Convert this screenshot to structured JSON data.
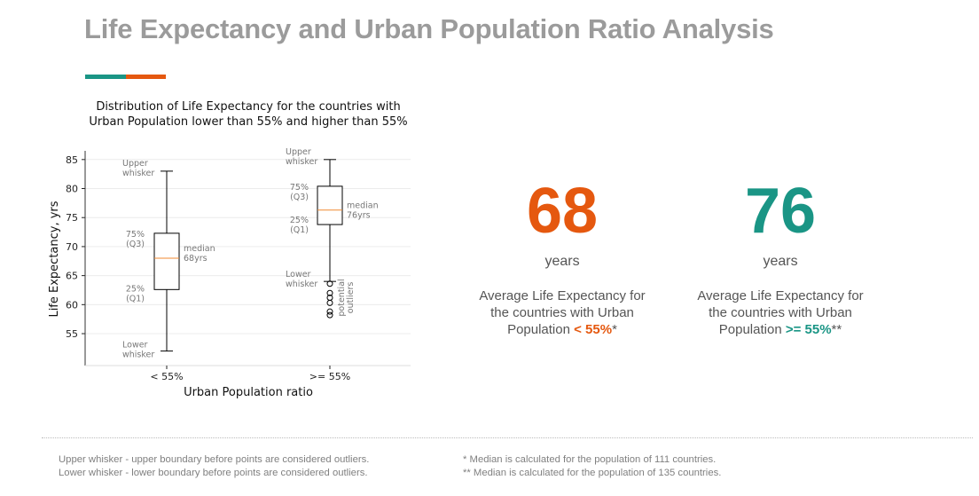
{
  "title": "Life Expectancy and Urban Population Ratio Analysis",
  "colors": {
    "orange": "#e5580f",
    "teal": "#1a9585",
    "median": "#f08a30"
  },
  "chart_data": {
    "type": "boxplot",
    "title_line1": "Distribution of Life Expectancy for the countries with",
    "title_line2": "Urban Population lower than 55% and higher than 55%",
    "xlabel": "Urban Population ratio",
    "ylabel": "Life Expectancy, yrs",
    "ylim": [
      49.5,
      86.5
    ],
    "yticks": [
      55,
      60,
      65,
      70,
      75,
      80,
      85
    ],
    "categories": [
      "< 55%",
      ">= 55%"
    ],
    "boxes": [
      {
        "category": "< 55%",
        "whisker_low": 52,
        "q1": 62.6,
        "median": 68,
        "q3": 72.3,
        "whisker_high": 83,
        "outliers": []
      },
      {
        "category": ">= 55%",
        "whisker_low": 64,
        "q1": 73.8,
        "median": 76.3,
        "q3": 80.4,
        "whisker_high": 85,
        "outliers": [
          63.6,
          62,
          61.2,
          60.3,
          58.8,
          58.2
        ]
      }
    ],
    "annotations": {
      "upper1": [
        "Upper",
        "whisker"
      ],
      "q3_1": [
        "75%",
        "(Q3)"
      ],
      "median1": [
        "median",
        "68yrs"
      ],
      "q1_1": [
        "25%",
        "(Q1)"
      ],
      "lower1": [
        "Lower",
        "whisker"
      ],
      "upper2": [
        "Upper",
        "whisker"
      ],
      "q3_2": [
        "75%",
        "(Q3)"
      ],
      "median2": [
        "median",
        "76yrs"
      ],
      "q1_2": [
        "25%",
        "(Q1)"
      ],
      "lower2": [
        "Lower",
        "whisker"
      ],
      "outliers": [
        "potential",
        "outliers"
      ]
    }
  },
  "stats": [
    {
      "value": "68",
      "unit": "years",
      "line1": "Average Life Expectancy for",
      "line2": "the countries with Urban",
      "line3_pre": "Population ",
      "highlight": "< 55%",
      "suffix": "*"
    },
    {
      "value": "76",
      "unit": "years",
      "line1": "Average Life Expectancy for",
      "line2": "the countries with Urban",
      "line3_pre": "Population ",
      "highlight": ">= 55%",
      "suffix": "**"
    }
  ],
  "footnotes": {
    "left1": "Upper whisker - upper boundary before points are considered outliers.",
    "left2": "Lower whisker - lower boundary before points are considered outliers.",
    "right1": "* Median is calculated for the population of 111 countries.",
    "right2": "** Median is calculated for the population of 135 countries."
  }
}
